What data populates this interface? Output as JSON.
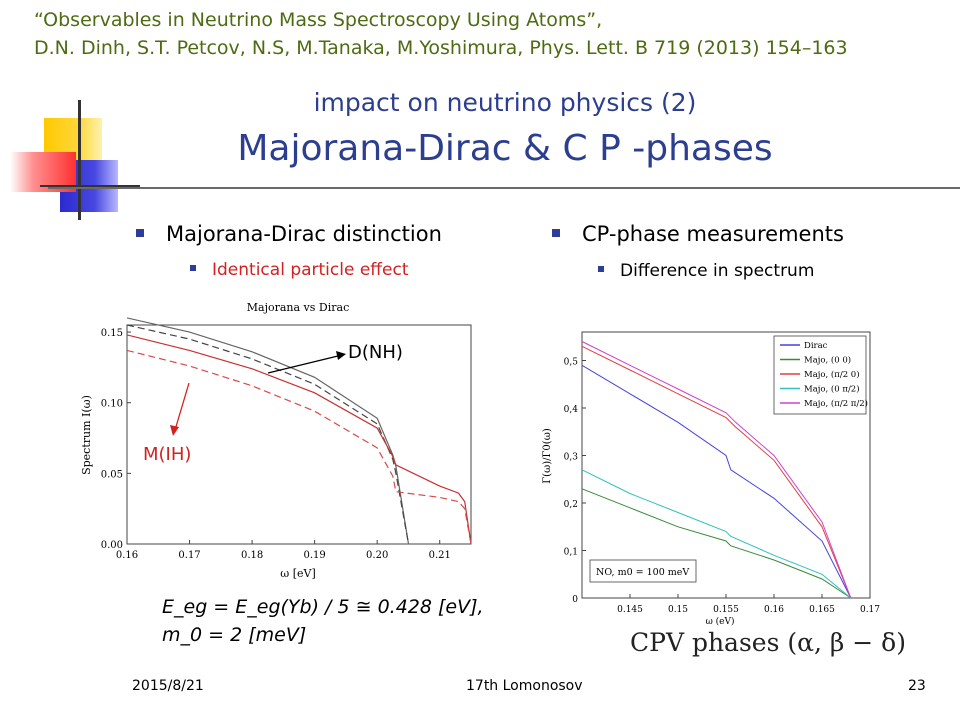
{
  "reference": {
    "line1": "“Observables in Neutrino Mass Spectroscopy Using Atoms”,",
    "line2": "D.N. Dinh, S.T. Petcov, N.S, M.Tanaka, M.Yoshimura, Phys. Lett. B 719 (2013) 154–163"
  },
  "subtitle": "impact on neutrino physics (2)",
  "title": "Majorana-Dirac & C P -phases",
  "left_bullets": {
    "main": "Majorana-Dirac distinction",
    "sub": "Identical particle effect"
  },
  "right_bullets": {
    "main": "CP-phase measurements",
    "sub": "Difference in spectrum"
  },
  "colors": {
    "title": "#2c3e8f",
    "reference": "#4e6b12",
    "highlight": "#d42020",
    "bullet": "#2c3e9a"
  },
  "annotations": {
    "dnh": "D(NH)",
    "mih": "M(IH)"
  },
  "equation": {
    "line1": "E_eg = E_eg(Yb) / 5 ≅ 0.428 [eV],",
    "line2": "m_0 = 2 [meV]"
  },
  "cpv_caption": "CPV phases (α, β − δ)",
  "footer": {
    "date": "2015/8/21",
    "event": "17th Lomonosov",
    "page": "23"
  },
  "chart_data": [
    {
      "type": "line",
      "title": "Majorana vs Dirac",
      "xlabel": "ω [eV]",
      "ylabel": "Spectrum I(ω)",
      "xlim": [
        0.16,
        0.215
      ],
      "ylim": [
        0,
        0.155
      ],
      "xticks": [
        "0.16",
        "0.17",
        "0.18",
        "0.19",
        "0.20",
        "0.21"
      ],
      "yticks": [
        "0.00",
        "0.05",
        "0.10",
        "0.15"
      ],
      "series": [
        {
          "color": "#666666",
          "dash": false,
          "x": [
            0.16,
            0.17,
            0.18,
            0.19,
            0.2,
            0.2025,
            0.203,
            0.205
          ],
          "y": [
            0.16,
            0.15,
            0.136,
            0.118,
            0.089,
            0.063,
            0.055,
            0.0
          ]
        },
        {
          "color": "#444444",
          "dash": true,
          "x": [
            0.16,
            0.17,
            0.18,
            0.19,
            0.2,
            0.2025,
            0.203,
            0.205
          ],
          "y": [
            0.155,
            0.145,
            0.131,
            0.113,
            0.085,
            0.06,
            0.05,
            0.0
          ]
        },
        {
          "color": "#c83030",
          "dash": false,
          "x": [
            0.16,
            0.17,
            0.18,
            0.19,
            0.2,
            0.2025,
            0.203,
            0.21,
            0.213,
            0.214,
            0.215
          ],
          "y": [
            0.148,
            0.137,
            0.124,
            0.107,
            0.082,
            0.062,
            0.056,
            0.041,
            0.036,
            0.03,
            0.0
          ]
        },
        {
          "color": "#d84a4a",
          "dash": true,
          "x": [
            0.16,
            0.17,
            0.18,
            0.19,
            0.2,
            0.2025,
            0.203,
            0.21,
            0.213,
            0.214,
            0.215
          ],
          "y": [
            0.137,
            0.126,
            0.112,
            0.094,
            0.068,
            0.048,
            0.037,
            0.033,
            0.03,
            0.025,
            0.0
          ]
        }
      ]
    },
    {
      "type": "line",
      "xlabel": "ω (eV)",
      "ylabel": "Γ(ω)/Γ0(ω)",
      "xlim": [
        0.14,
        0.17
      ],
      "ylim": [
        0,
        0.56
      ],
      "xticks": [
        "0.145",
        "0.15",
        "0.155",
        "0.16",
        "0.165",
        "0.17"
      ],
      "yticks": [
        "0",
        "0,1",
        "0,2",
        "0,3",
        "0,4",
        "0,5"
      ],
      "inset": "NO, m0 = 100 meV",
      "series": [
        {
          "name": "Dirac",
          "color": "#4444dd",
          "x": [
            0.14,
            0.145,
            0.15,
            0.155,
            0.1555,
            0.16,
            0.165,
            0.168
          ],
          "y": [
            0.49,
            0.43,
            0.37,
            0.3,
            0.27,
            0.21,
            0.12,
            0.0
          ]
        },
        {
          "name": "Majo, (0 0)",
          "color": "#3a8a3a",
          "x": [
            0.14,
            0.145,
            0.15,
            0.155,
            0.1555,
            0.16,
            0.165,
            0.168
          ],
          "y": [
            0.23,
            0.19,
            0.15,
            0.12,
            0.11,
            0.08,
            0.04,
            0.0
          ]
        },
        {
          "name": "Majo, (π/2 0)",
          "color": "#e04040",
          "x": [
            0.14,
            0.145,
            0.15,
            0.155,
            0.156,
            0.16,
            0.165,
            0.168
          ],
          "y": [
            0.53,
            0.48,
            0.43,
            0.38,
            0.36,
            0.29,
            0.15,
            0.0
          ]
        },
        {
          "name": "Majo, (0 π/2)",
          "color": "#30c0c0",
          "x": [
            0.14,
            0.145,
            0.15,
            0.155,
            0.1555,
            0.16,
            0.165,
            0.168
          ],
          "y": [
            0.27,
            0.22,
            0.18,
            0.14,
            0.13,
            0.09,
            0.05,
            0.0
          ]
        },
        {
          "name": "Majo, (π/2 π/2)",
          "color": "#d040d0",
          "x": [
            0.14,
            0.145,
            0.15,
            0.155,
            0.156,
            0.16,
            0.165,
            0.168
          ],
          "y": [
            0.54,
            0.49,
            0.44,
            0.39,
            0.37,
            0.3,
            0.16,
            0.0
          ]
        }
      ]
    }
  ]
}
